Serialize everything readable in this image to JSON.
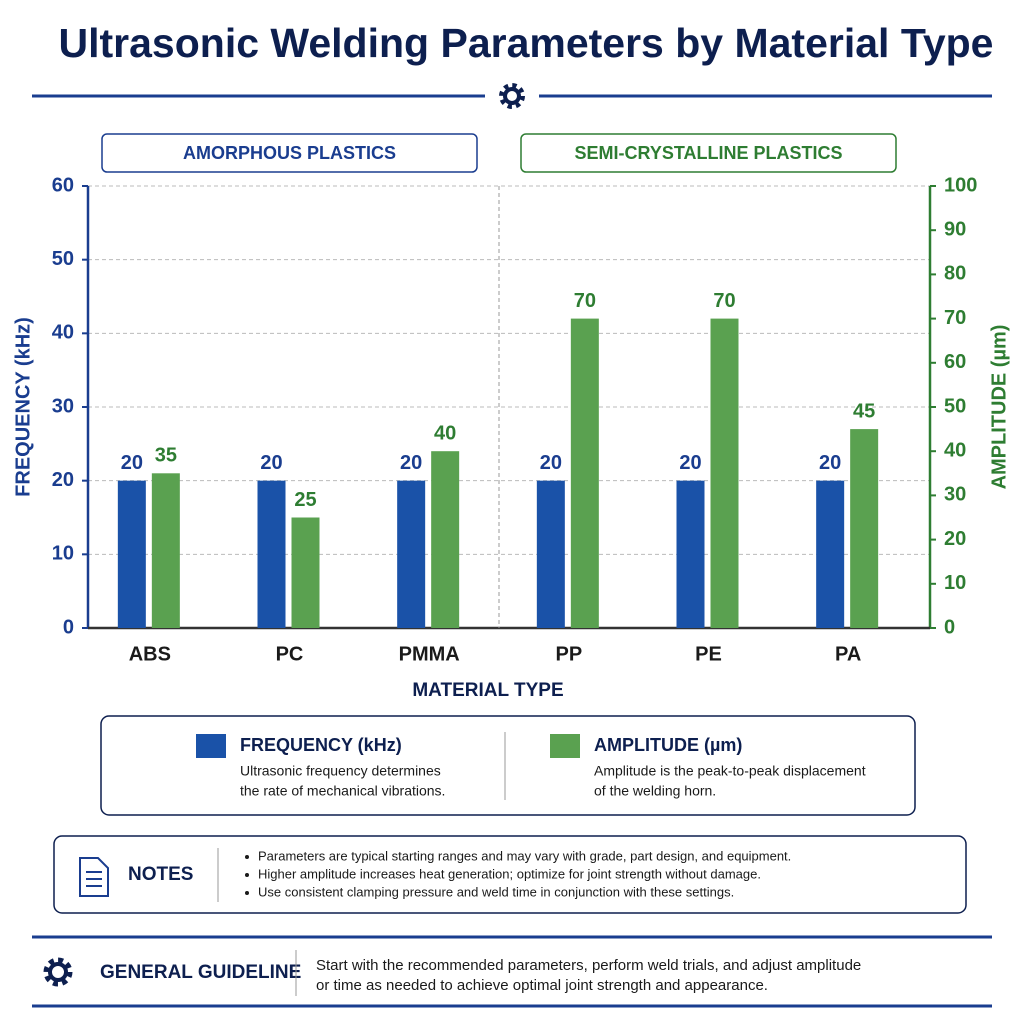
{
  "chart_data": {
    "type": "bar",
    "title": "Ultrasonic Welding Parameters by Material Type",
    "categories": [
      "ABS",
      "PC",
      "PMMA",
      "PP",
      "PE",
      "PA"
    ],
    "groups": [
      {
        "name": "AMORPHOUS PLASTICS",
        "color": "#1a3d8f",
        "members": [
          "ABS",
          "PC",
          "PMMA"
        ]
      },
      {
        "name": "SEMI-CRYSTALLINE PLASTICS",
        "color": "#2e7d32",
        "members": [
          "PP",
          "PE",
          "PA"
        ]
      }
    ],
    "series": [
      {
        "name": "FREQUENCY (kHz)",
        "color": "#1a52a8",
        "values": [
          20,
          20,
          20,
          20,
          20,
          20
        ],
        "description": [
          "Ultrasonic frequency determines",
          "the rate of mechanical vibrations."
        ]
      },
      {
        "name": "AMPLITUDE (µm)",
        "color": "#5aa150",
        "axis": "y2",
        "values": [
          35,
          25,
          40,
          70,
          70,
          45
        ],
        "description": [
          "Amplitude is the peak-to-peak displacement",
          "of the welding horn."
        ]
      }
    ],
    "xlabel": "MATERIAL TYPE",
    "ylabel": "FREQUENCY (kHz)",
    "y2label": "AMPLITUDE (µm)",
    "ylim": [
      0,
      60
    ],
    "yticks": [
      0,
      10,
      20,
      30,
      40,
      50,
      60
    ],
    "y2lim": [
      0,
      100
    ],
    "y2ticks": [
      0,
      10,
      20,
      30,
      40,
      50,
      60,
      70,
      80,
      90,
      100
    ],
    "grid": true
  },
  "notes": {
    "title": "NOTES",
    "items": [
      "Parameters are typical starting ranges and may vary with grade, part design, and equipment.",
      "Higher amplitude increases heat generation; optimize for joint strength without damage.",
      "Use consistent clamping pressure and weld time in conjunction with these settings."
    ]
  },
  "guideline": {
    "title": "GENERAL GUIDELINE",
    "text": [
      "Start with the recommended parameters, perform weld trials, and adjust amplitude",
      "or time as needed to achieve optimal joint strength and appearance."
    ]
  }
}
